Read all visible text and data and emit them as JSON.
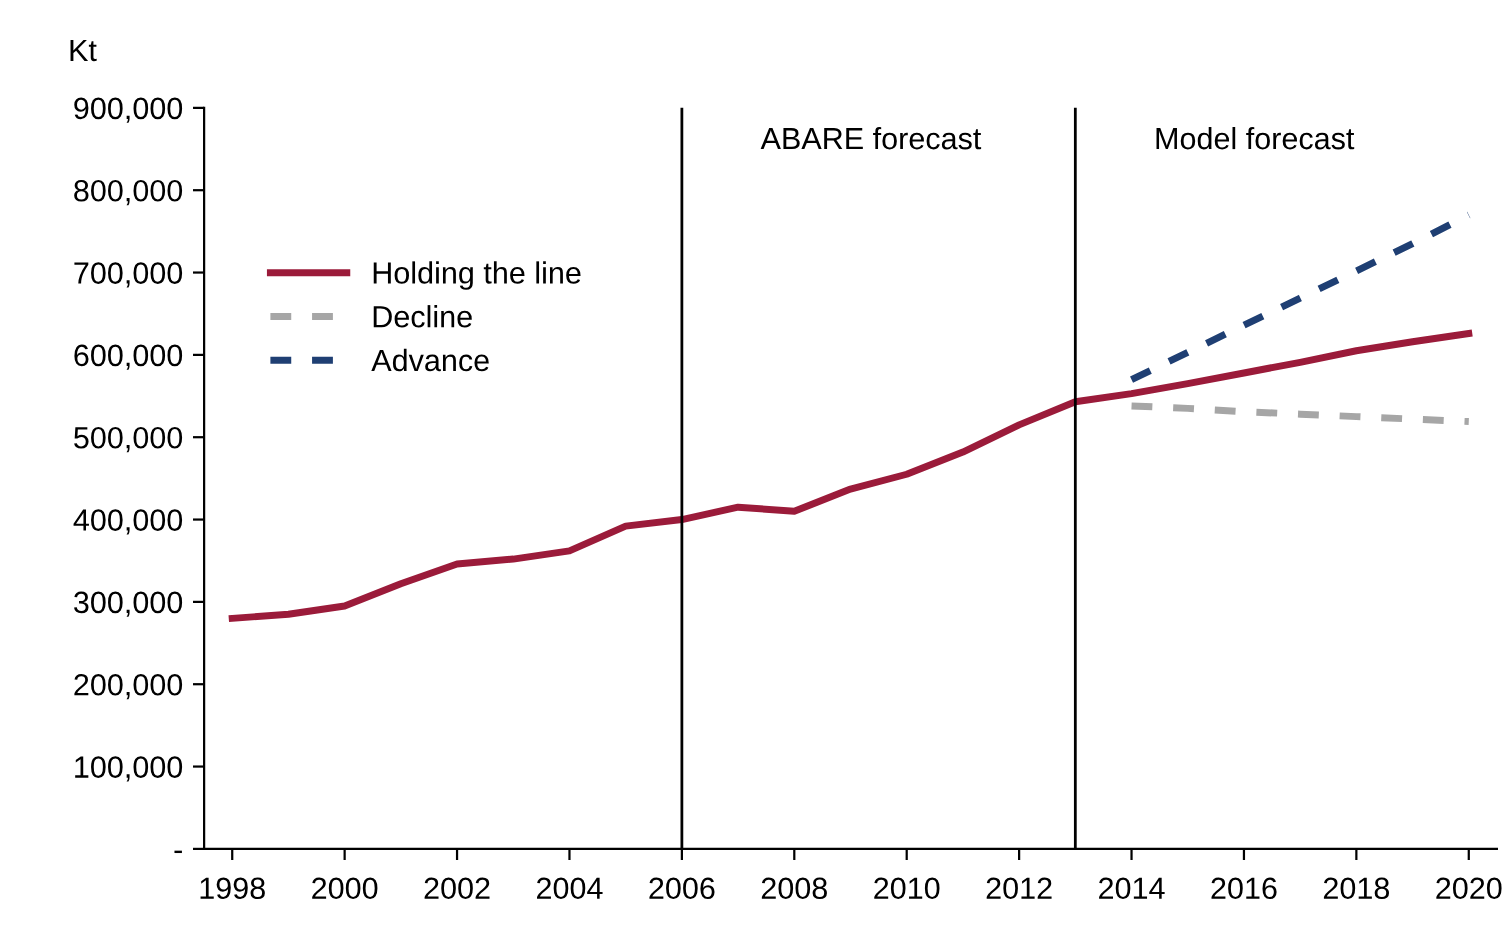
{
  "chart_data": {
    "type": "line",
    "ylabel": "Kt",
    "x": [
      1998,
      1999,
      2000,
      2001,
      2002,
      2003,
      2004,
      2005,
      2006,
      2007,
      2008,
      2009,
      2010,
      2011,
      2012,
      2013,
      2014,
      2015,
      2016,
      2017,
      2018,
      2019,
      2020
    ],
    "series": [
      {
        "name": "Holding the line",
        "color": "#9b1b3a",
        "line_style": "solid",
        "values": [
          280000,
          285000,
          295000,
          322000,
          346000,
          352000,
          362000,
          392000,
          400000,
          415000,
          410000,
          437000,
          455000,
          482000,
          515000,
          543000,
          553000,
          565000,
          578000,
          591000,
          605000,
          616000,
          626000
        ]
      },
      {
        "name": "Decline",
        "color": "#a6a6a6",
        "line_style": "dashed",
        "x": [
          2014,
          2015,
          2016,
          2017,
          2018,
          2019,
          2020
        ],
        "values": [
          538000,
          535000,
          531000,
          528000,
          525000,
          522000,
          519000
        ]
      },
      {
        "name": "Advance",
        "color": "#1f3f73",
        "line_style": "dashed",
        "x": [
          2014,
          2015,
          2016,
          2017,
          2018,
          2019,
          2020
        ],
        "values": [
          570000,
          603000,
          636000,
          669000,
          702000,
          735000,
          770000
        ]
      }
    ],
    "xlim": [
      1997.5,
      2020.5
    ],
    "xticks": [
      1998,
      2000,
      2002,
      2004,
      2006,
      2008,
      2010,
      2012,
      2014,
      2016,
      2018,
      2020
    ],
    "ylim": [
      0,
      900000
    ],
    "yticks": [
      {
        "value": 0,
        "label": "-"
      },
      {
        "value": 100000,
        "label": "100,000"
      },
      {
        "value": 200000,
        "label": "200,000"
      },
      {
        "value": 300000,
        "label": "300,000"
      },
      {
        "value": 400000,
        "label": "400,000"
      },
      {
        "value": 500000,
        "label": "500,000"
      },
      {
        "value": 600000,
        "label": "600,000"
      },
      {
        "value": 700000,
        "label": "700,000"
      },
      {
        "value": 800000,
        "label": "800,000"
      },
      {
        "value": 900000,
        "label": "900,000"
      }
    ],
    "ref_lines": [
      {
        "axis": "x",
        "value": 2006,
        "label": "ABARE forecast",
        "color": "#000000"
      },
      {
        "axis": "x",
        "value": 2013,
        "label": "Model forecast",
        "color": "#000000"
      }
    ],
    "grid": false,
    "legend": "top left",
    "marker": "none"
  }
}
